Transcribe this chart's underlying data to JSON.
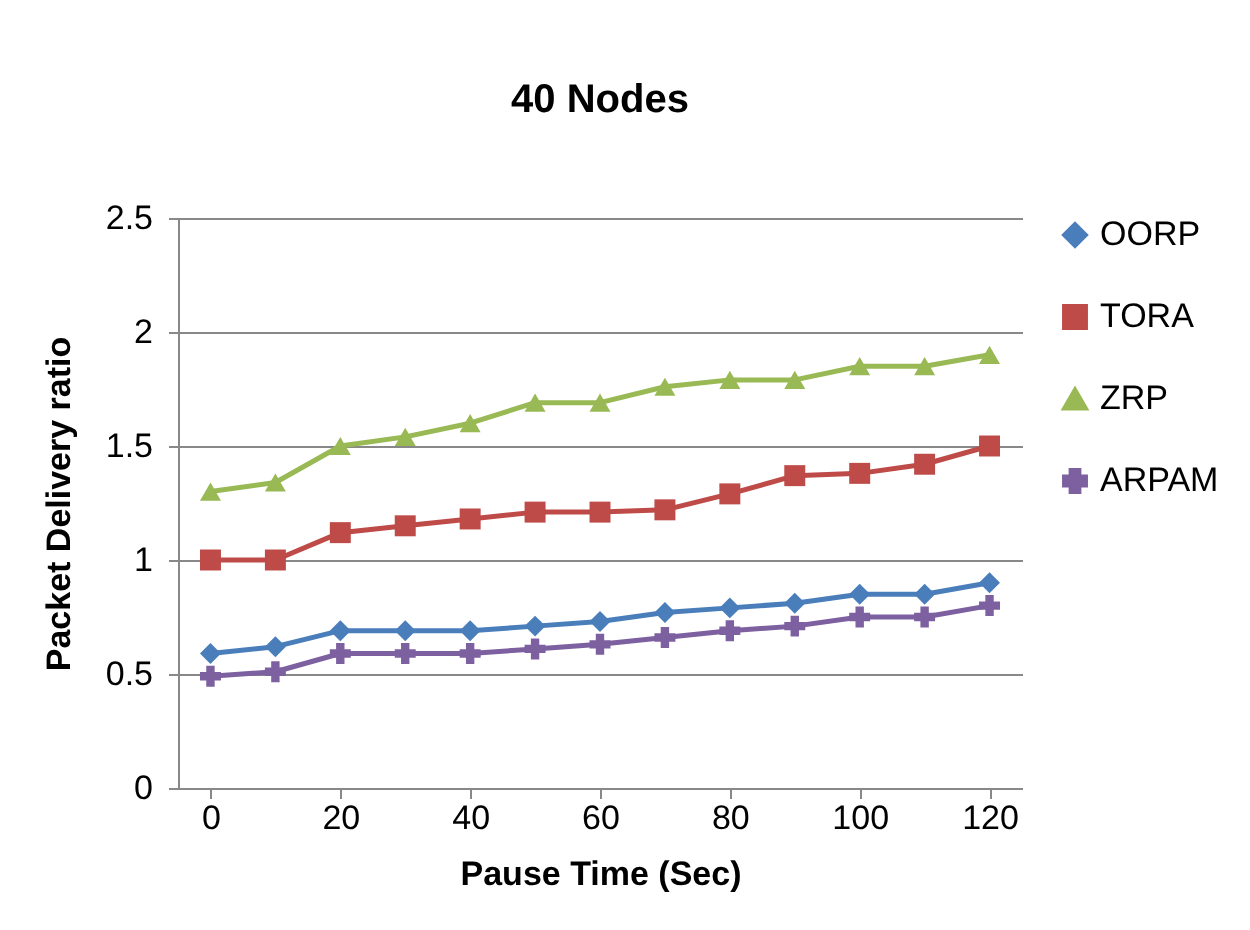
{
  "chart_data": {
    "type": "line",
    "title": "40 Nodes",
    "xlabel": "Pause Time (Sec)",
    "ylabel": "Packet Delivery ratio",
    "x": [
      0,
      10,
      20,
      30,
      40,
      50,
      60,
      70,
      80,
      90,
      100,
      110,
      120
    ],
    "xlim": [
      -5,
      125
    ],
    "xticks": [
      0,
      20,
      40,
      60,
      80,
      100,
      120
    ],
    "ylim": [
      0,
      2.5
    ],
    "yticks": [
      0,
      0.5,
      1,
      1.5,
      2,
      2.5
    ],
    "grid": "y",
    "legend": "right",
    "series": [
      {
        "name": "OORP",
        "color": "#4a7ebb",
        "marker": "diamond",
        "values": [
          0.59,
          0.62,
          0.69,
          0.69,
          0.69,
          0.71,
          0.73,
          0.77,
          0.79,
          0.81,
          0.85,
          0.85,
          0.9
        ]
      },
      {
        "name": "TORA",
        "color": "#be4b48",
        "marker": "square",
        "values": [
          1.0,
          1.0,
          1.12,
          1.15,
          1.18,
          1.21,
          1.21,
          1.22,
          1.29,
          1.37,
          1.38,
          1.42,
          1.5
        ]
      },
      {
        "name": "ZRP",
        "color": "#98b954",
        "marker": "triangle",
        "values": [
          1.3,
          1.34,
          1.5,
          1.54,
          1.6,
          1.69,
          1.69,
          1.76,
          1.79,
          1.79,
          1.85,
          1.85,
          1.9
        ]
      },
      {
        "name": "ARPAM",
        "color": "#7d60a0",
        "marker": "cross",
        "values": [
          0.49,
          0.51,
          0.59,
          0.59,
          0.59,
          0.61,
          0.63,
          0.66,
          0.69,
          0.71,
          0.75,
          0.75,
          0.8
        ]
      }
    ]
  }
}
